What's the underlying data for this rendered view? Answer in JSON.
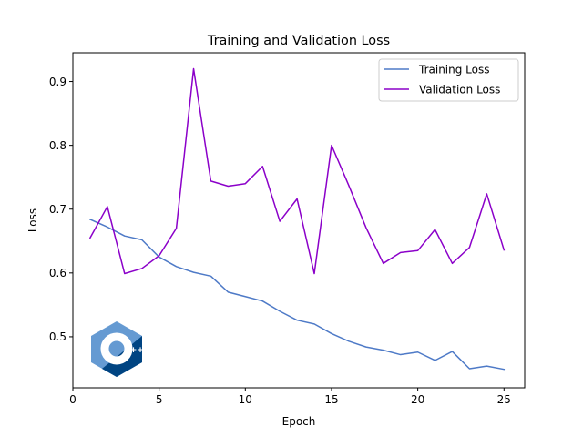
{
  "chart_data": {
    "type": "line",
    "title": "Training and Validation Loss",
    "xlabel": "Epoch",
    "ylabel": "Loss",
    "xlim": [
      0,
      26.2
    ],
    "ylim": [
      0.42,
      0.945
    ],
    "xticks": [
      0,
      5,
      10,
      15,
      20,
      25
    ],
    "yticks": [
      0.5,
      0.6,
      0.7,
      0.8,
      0.9
    ],
    "xtick_labels": [
      "0",
      "5",
      "10",
      "15",
      "20",
      "25"
    ],
    "ytick_labels": [
      "0.5",
      "0.6",
      "0.7",
      "0.8",
      "0.9"
    ],
    "grid": false,
    "legend": "top-right",
    "x": [
      1,
      2,
      3,
      4,
      5,
      6,
      7,
      8,
      9,
      10,
      11,
      12,
      13,
      14,
      15,
      16,
      17,
      18,
      19,
      20,
      21,
      22,
      23,
      24,
      25
    ],
    "series": [
      {
        "name": "Training Loss",
        "color": "#4e7ac7",
        "values": [
          0.684,
          0.672,
          0.658,
          0.652,
          0.625,
          0.61,
          0.601,
          0.595,
          0.57,
          0.563,
          0.556,
          0.54,
          0.526,
          0.52,
          0.505,
          0.493,
          0.484,
          0.479,
          0.472,
          0.476,
          0.463,
          0.477,
          0.45,
          0.454,
          0.449
        ]
      },
      {
        "name": "Validation Loss",
        "color": "#8b00c9",
        "values": [
          0.655,
          0.704,
          0.599,
          0.607,
          0.627,
          0.67,
          0.92,
          0.744,
          0.736,
          0.74,
          0.767,
          0.681,
          0.716,
          0.599,
          0.8,
          0.737,
          0.671,
          0.615,
          0.632,
          0.635,
          0.668,
          0.615,
          0.64,
          0.724,
          0.636
        ]
      }
    ]
  },
  "logo": {
    "name": "cpp-logo-icon",
    "text": "C++",
    "colors": {
      "light": "#659ad2",
      "dark": "#004482",
      "mid": "#00599c"
    }
  }
}
